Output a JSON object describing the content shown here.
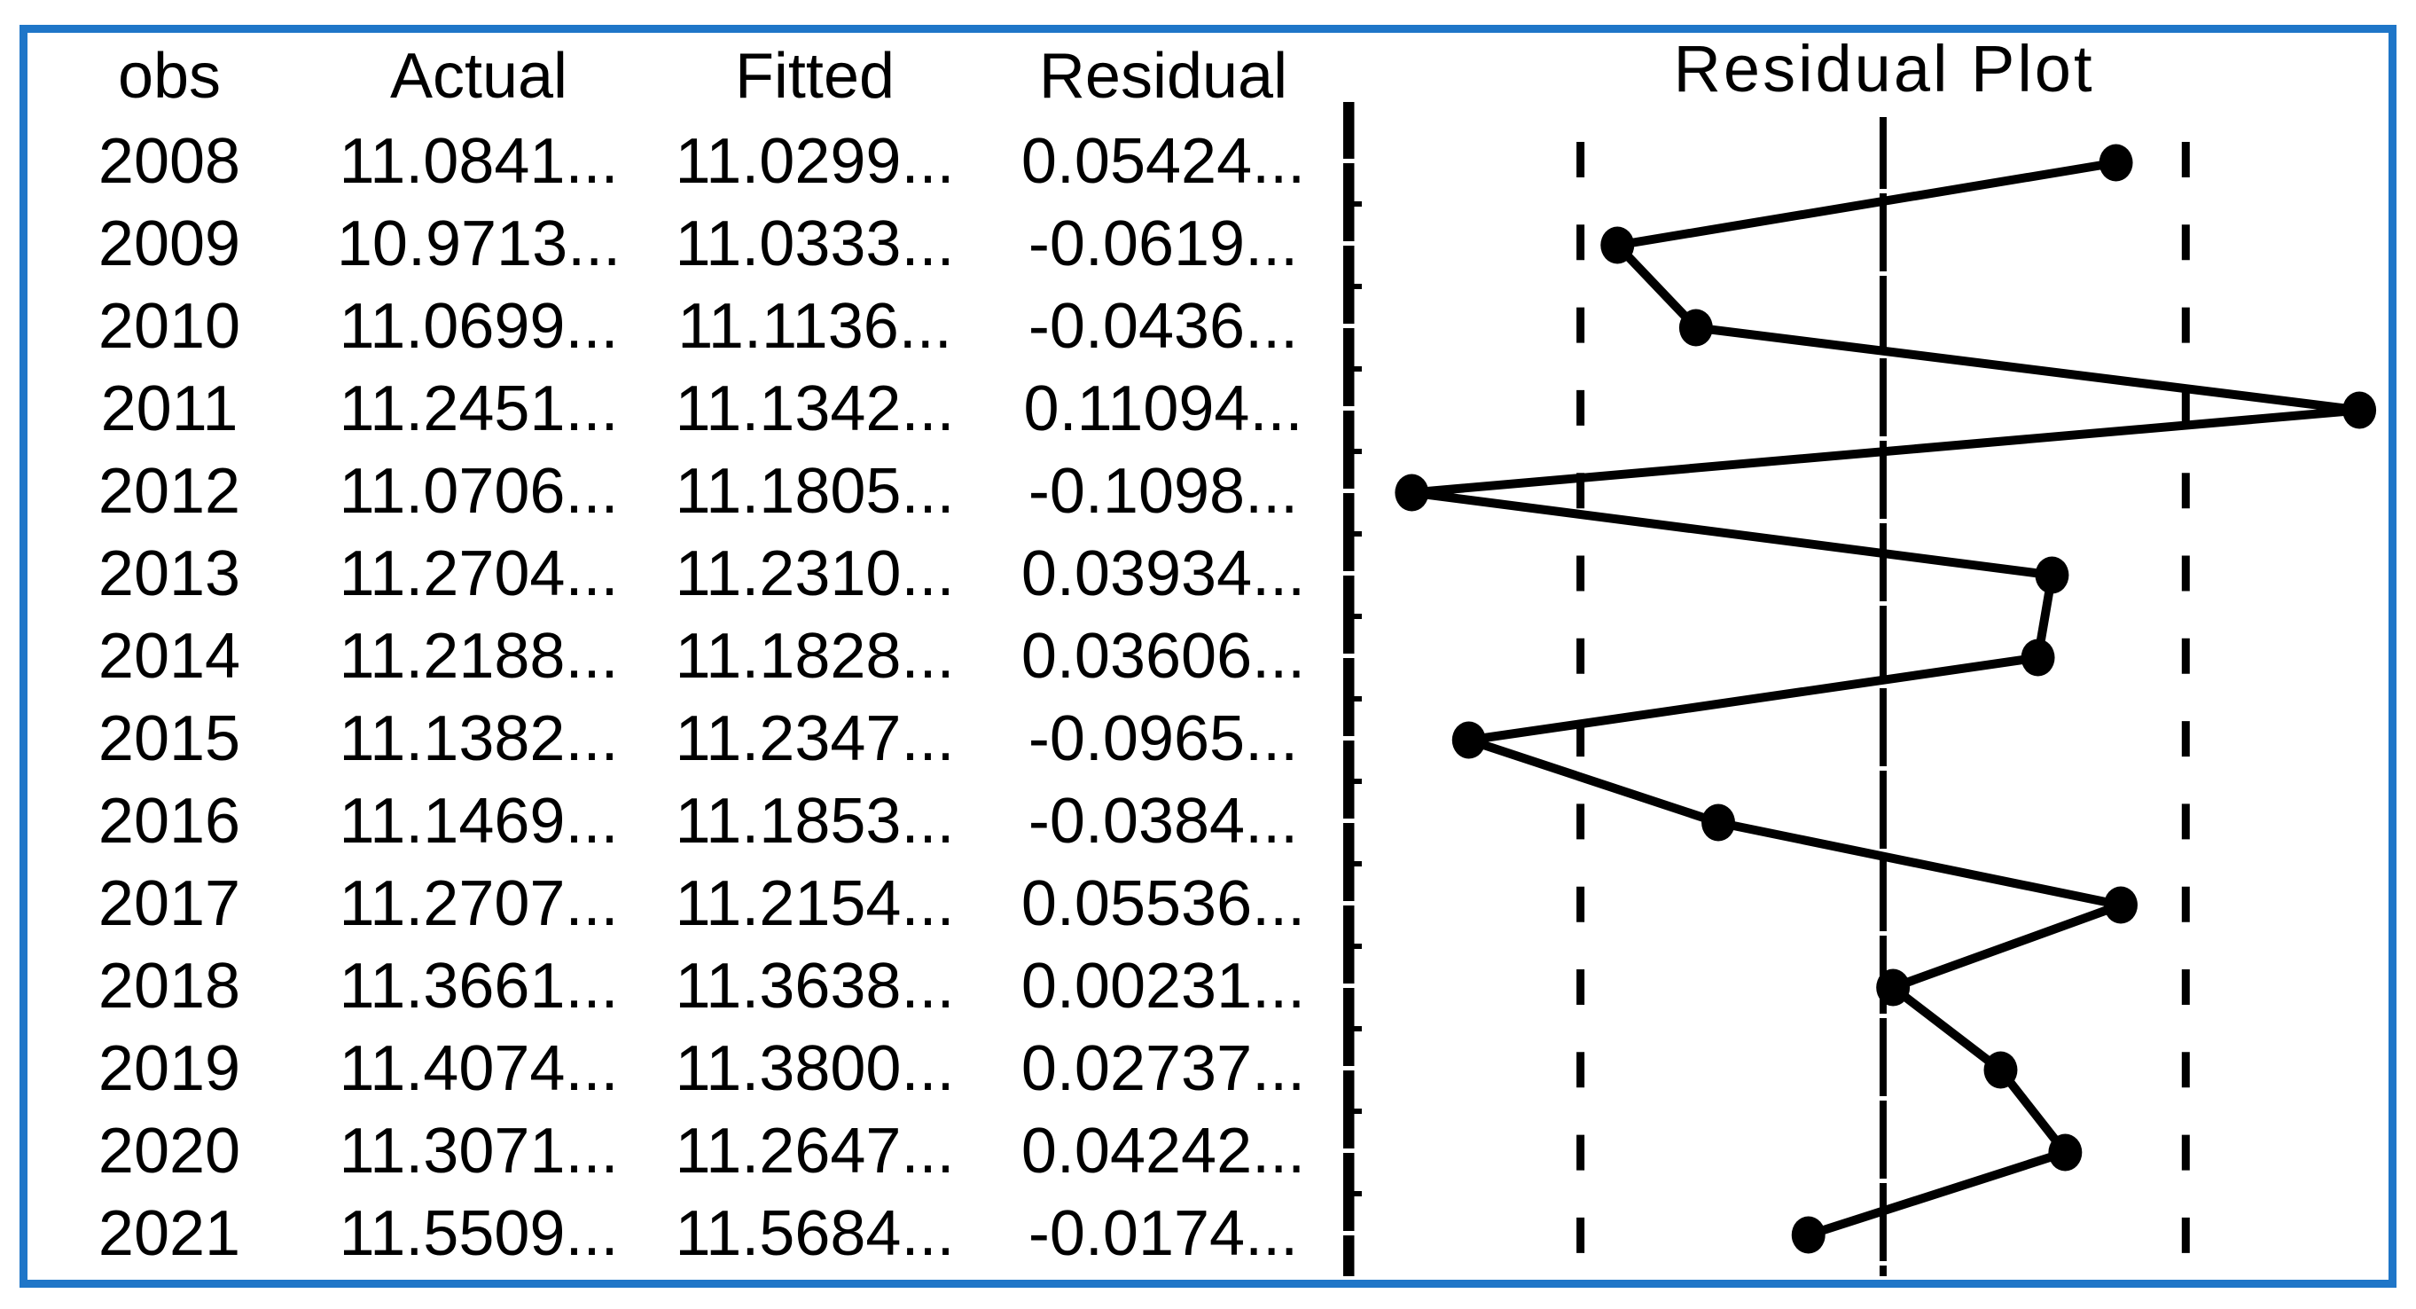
{
  "frame": {
    "border_color": "#1f76c8",
    "background_color": "#ffffff",
    "ink_color": "#000000"
  },
  "table": {
    "headers": [
      "obs",
      "Actual",
      "Fitted",
      "Residual"
    ],
    "rows": [
      [
        "2008",
        "11.0841...",
        "11.0299...",
        "0.05424..."
      ],
      [
        "2009",
        "10.9713...",
        "11.0333...",
        "-0.0619..."
      ],
      [
        "2010",
        "11.0699...",
        "11.1136...",
        "-0.0436..."
      ],
      [
        "2011",
        "11.2451...",
        "11.1342...",
        "0.11094..."
      ],
      [
        "2012",
        "11.0706...",
        "11.1805...",
        "-0.1098..."
      ],
      [
        "2013",
        "11.2704...",
        "11.2310...",
        "0.03934..."
      ],
      [
        "2014",
        "11.2188...",
        "11.1828...",
        "0.03606..."
      ],
      [
        "2015",
        "11.1382...",
        "11.2347...",
        "-0.0965..."
      ],
      [
        "2016",
        "11.1469...",
        "11.1853...",
        "-0.0384..."
      ],
      [
        "2017",
        "11.2707...",
        "11.2154...",
        "0.05536..."
      ],
      [
        "2018",
        "11.3661...",
        "11.3638...",
        "0.00231..."
      ],
      [
        "2019",
        "11.4074...",
        "11.3800...",
        "0.02737..."
      ],
      [
        "2020",
        "11.3071...",
        "11.2647...",
        "0.04242..."
      ],
      [
        "2021",
        "11.5509...",
        "11.5684...",
        "-0.0174..."
      ]
    ]
  },
  "chart_data": {
    "type": "line",
    "title": "Residual Plot",
    "orientation": "residual value on horizontal axis, observations (years) running top to bottom",
    "categories": [
      2008,
      2009,
      2010,
      2011,
      2012,
      2013,
      2014,
      2015,
      2016,
      2017,
      2018,
      2019,
      2020,
      2021
    ],
    "series": [
      {
        "name": "Residual",
        "values": [
          0.05424,
          -0.0619,
          -0.0436,
          0.11094,
          -0.1098,
          0.03934,
          0.03606,
          -0.0965,
          -0.0384,
          0.05536,
          0.00231,
          0.02737,
          0.04242,
          -0.0174
        ]
      }
    ],
    "zero_line": 0,
    "dashed_guides": [
      -0.0705,
      0.0705
    ],
    "x_range": [
      -0.125,
      0.125
    ],
    "grid": "off",
    "legend": "none",
    "marker": "filled-circle",
    "line_color": "#000000"
  }
}
